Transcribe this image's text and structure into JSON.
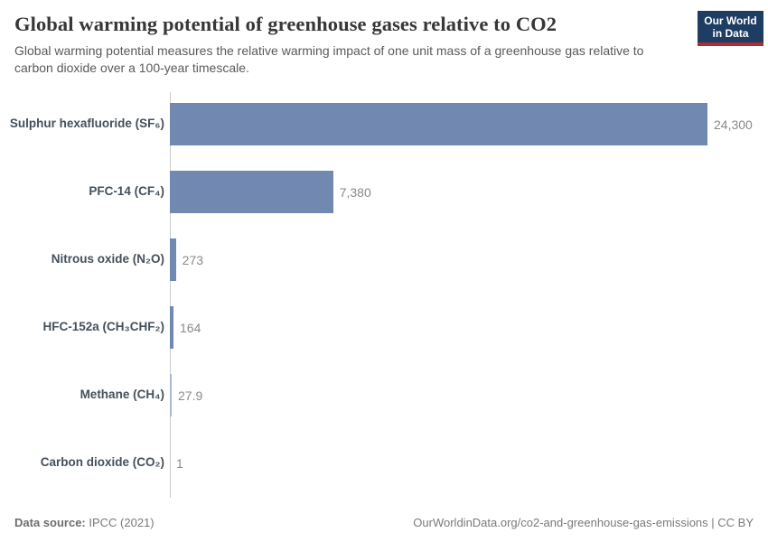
{
  "header": {
    "title": "Global warming potential of greenhouse gases relative to CO2",
    "subtitle": "Global warming potential measures the relative warming impact of one unit mass of a greenhouse gas relative to carbon dioxide over a 100-year timescale.",
    "logo": {
      "line1": "Our World",
      "line2": "in Data"
    }
  },
  "chart_data": {
    "type": "bar",
    "orientation": "horizontal",
    "title": "Global warming potential of greenhouse gases relative to CO2",
    "categories": [
      "Sulphur hexafluoride (SF₆)",
      "PFC-14 (CF₄)",
      "Nitrous oxide (N₂O)",
      "HFC-152a (CH₃CHF₂)",
      "Methane (CH₄)",
      "Carbon dioxide (CO₂)"
    ],
    "values": [
      24300,
      7380,
      273,
      164,
      27.9,
      1
    ],
    "value_labels": [
      "24,300",
      "7,380",
      "273",
      "164",
      "27.9",
      "1"
    ],
    "xlabel": "",
    "ylabel": "",
    "xlim": [
      0,
      24300
    ],
    "grid": false,
    "legend": "none",
    "bar_color": "#7189b0",
    "thin_bar_color": "#a9b8d0"
  },
  "footer": {
    "source_label": "Data source:",
    "source_value": " IPCC (2021)",
    "right_text": "OurWorldinData.org/co2-and-greenhouse-gas-emissions | CC BY"
  },
  "colors": {
    "logo_bg": "#1d3d63",
    "logo_red": "#a92e34",
    "axis": "#c9ccd1",
    "title_text": "#383636",
    "subtitle_text": "#5a5a5a",
    "category_text": "#44505c",
    "value_text": "#8a8a8a"
  }
}
